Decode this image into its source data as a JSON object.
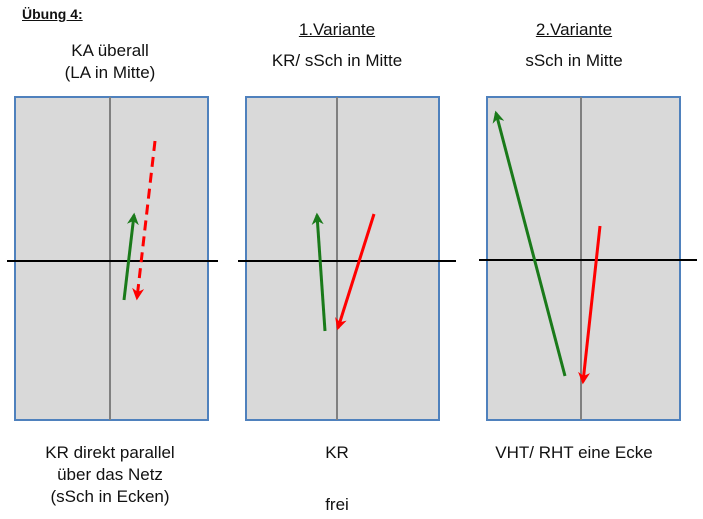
{
  "title": "Übung 4:",
  "panels": [
    {
      "id": "panel-1",
      "header": "",
      "subtitle": "KA überall\n(LA in Mitte)",
      "caption": "KR direkt parallel\nüber das Netz\n(sSch in Ecken)",
      "extra": ""
    },
    {
      "id": "panel-2",
      "header": "1.Variante",
      "subtitle": "KR/ sSch in Mitte",
      "caption": "KR",
      "extra": "frei"
    },
    {
      "id": "panel-3",
      "header": "2.Variante",
      "subtitle": "sSch in Mitte",
      "caption": "VHT/ RHT eine Ecke",
      "extra": ""
    }
  ],
  "colors": {
    "court_fill": "#d9d9d9",
    "court_border": "#4f81bd",
    "center_line": "#808080",
    "net": "#000000",
    "green_arrow": "#1a7a1a",
    "red_arrow": "#ff0000"
  }
}
